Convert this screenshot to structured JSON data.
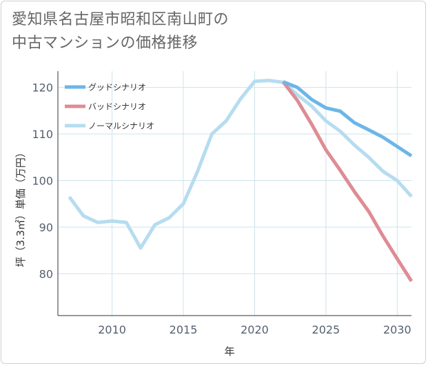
{
  "title_line1": "愛知県名古屋市昭和区南山町の",
  "title_line2": "中古マンションの価格推移",
  "chart_data": {
    "type": "line",
    "title": "愛知県名古屋市昭和区南山町の中古マンションの価格推移",
    "xlabel": "年",
    "ylabel": "坪（3.3㎡）単価（万円）",
    "xlim": [
      2006.2,
      2031
    ],
    "ylim": [
      71,
      123.5
    ],
    "xticks": [
      2010,
      2015,
      2020,
      2025,
      2030
    ],
    "yticks": [
      80,
      90,
      100,
      110,
      120
    ],
    "grid": true,
    "legend_position": "top-left",
    "series": [
      {
        "name": "グッドシナリオ",
        "color": "#6cb6e8",
        "x": [
          2022,
          2023,
          2024,
          2025,
          2026,
          2027,
          2028,
          2029,
          2030,
          2031
        ],
        "y": [
          121.2,
          120,
          117.4,
          115.6,
          114.9,
          112.4,
          110.9,
          109.3,
          107.3,
          105.3
        ]
      },
      {
        "name": "バッドシナリオ",
        "color": "#de8c94",
        "x": [
          2022,
          2023,
          2024,
          2025,
          2026,
          2027,
          2028,
          2029,
          2030,
          2031
        ],
        "y": [
          121.2,
          117.2,
          112.1,
          106.6,
          102.2,
          97.6,
          93.4,
          88.1,
          83.2,
          78.4
        ]
      },
      {
        "name": "ノーマルシナリオ",
        "color": "#b6dcef",
        "x": [
          2007,
          2008,
          2009,
          2010,
          2011,
          2012,
          2013,
          2014,
          2015,
          2016,
          2017,
          2018,
          2019,
          2020,
          2021,
          2022,
          2023,
          2024,
          2025,
          2026,
          2027,
          2028,
          2029,
          2030,
          2031
        ],
        "y": [
          96.5,
          92.4,
          91,
          91.3,
          91,
          85.5,
          90.5,
          92,
          95,
          102,
          110,
          112.8,
          117.5,
          121.3,
          121.5,
          121.1,
          118.4,
          116,
          112.8,
          110.6,
          107.6,
          105,
          102,
          100,
          96.6
        ]
      }
    ]
  }
}
